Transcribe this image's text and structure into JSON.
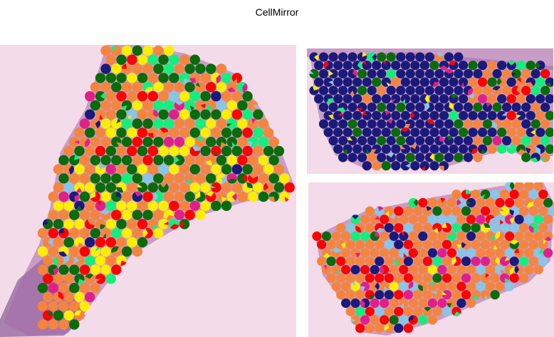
{
  "title": "CellMirror",
  "colors": {
    "tissue_background": "#f4dbe9",
    "tissue_stain": "#a46aa8",
    "tissue_dark": "#6b3a82",
    "cell_types": [
      "#f5843f",
      "#0a6b0a",
      "#1a1a7a",
      "#ffee00",
      "#ff0000",
      "#10f07a",
      "#88c6e8",
      "#e0208a"
    ]
  },
  "panels": [
    {
      "name": "left-tissue-section",
      "dominant": [
        "#f5843f",
        "#0a6b0a",
        "#ffee00"
      ]
    },
    {
      "name": "top-right-tissue-section",
      "dominant": [
        "#1a1a7a",
        "#f5843f"
      ]
    },
    {
      "name": "bottom-right-tissue-section",
      "dominant": [
        "#f5843f",
        "#ff0000",
        "#88c6e8"
      ]
    }
  ]
}
